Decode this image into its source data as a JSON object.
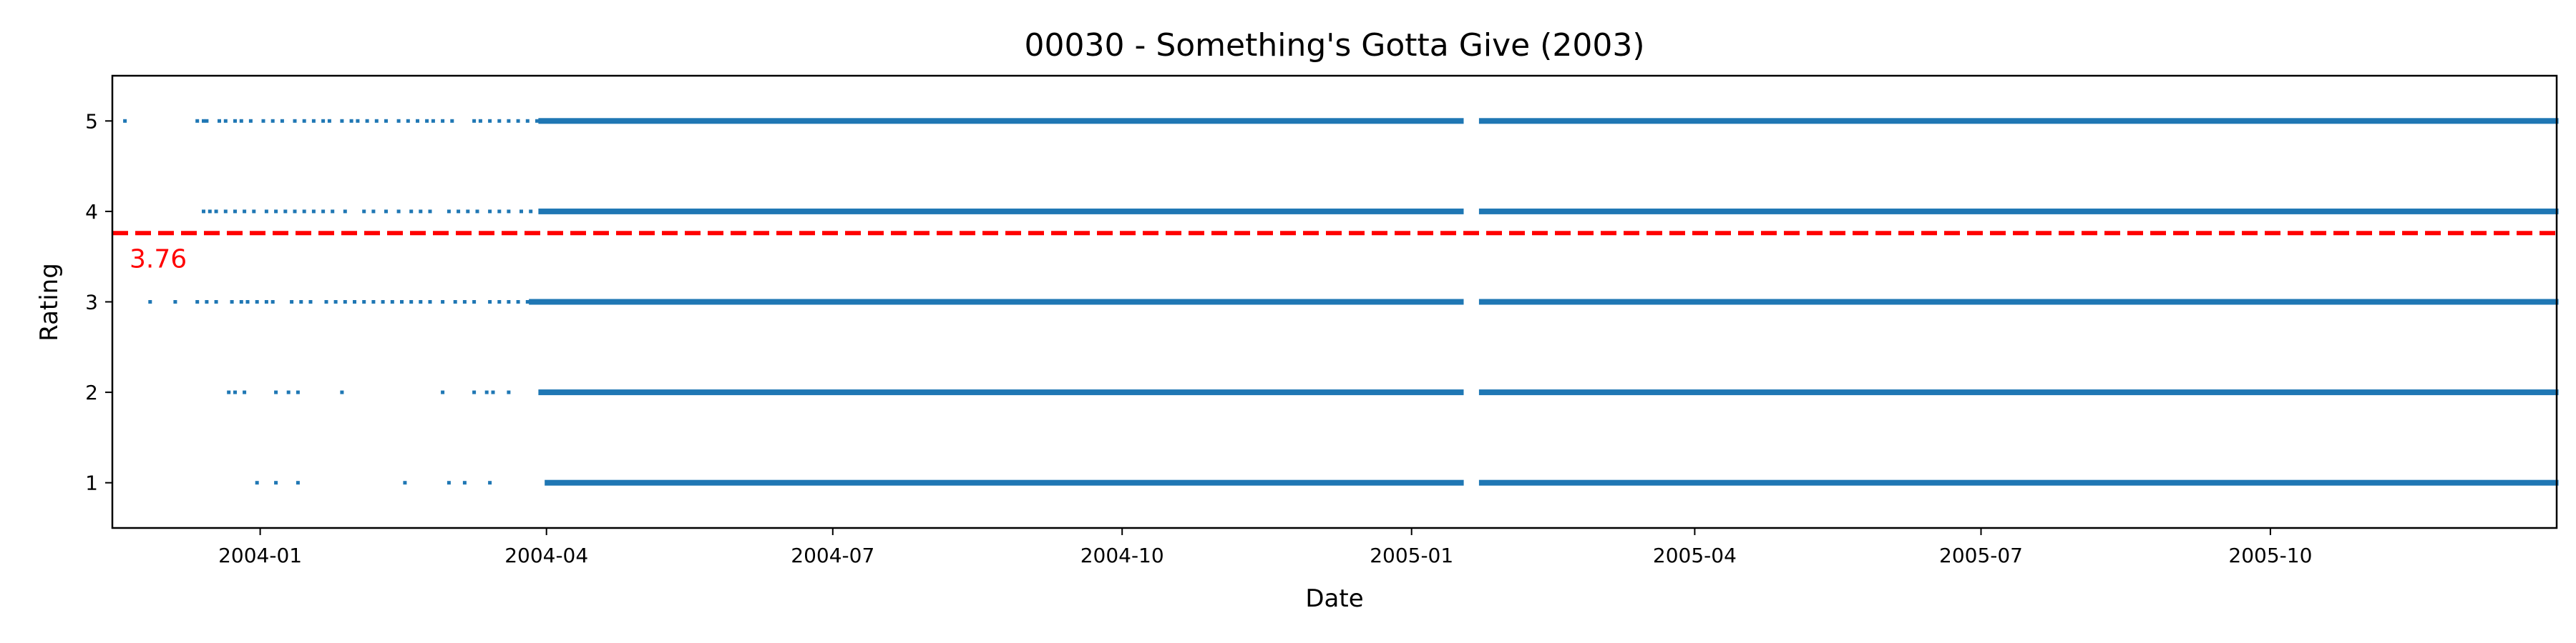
{
  "chart_data": {
    "type": "scatter",
    "title": "00030 - Something's Gotta Give (2003)",
    "xlabel": "Date",
    "ylabel": "Rating",
    "xlim": [
      "2003-11-15",
      "2005-12-31"
    ],
    "ylim": [
      0.5,
      5.5
    ],
    "x_ticks": [
      {
        "date": "2004-01-01",
        "label": "2004-01"
      },
      {
        "date": "2004-04-01",
        "label": "2004-04"
      },
      {
        "date": "2004-07-01",
        "label": "2004-07"
      },
      {
        "date": "2004-10-01",
        "label": "2004-10"
      },
      {
        "date": "2005-01-01",
        "label": "2005-01"
      },
      {
        "date": "2005-04-01",
        "label": "2005-04"
      },
      {
        "date": "2005-07-01",
        "label": "2005-07"
      },
      {
        "date": "2005-10-01",
        "label": "2005-10"
      }
    ],
    "y_ticks": [
      1,
      2,
      3,
      4,
      5
    ],
    "grid": false,
    "point_color": "#1f77b4",
    "reference_line": {
      "value": 3.76,
      "label": "3.76",
      "color": "#ff0000",
      "style": "dashed"
    },
    "series": [
      {
        "rating": 5,
        "sparse_dates": [
          "2003-11-19",
          "2003-12-12",
          "2003-12-14",
          "2003-12-15",
          "2003-12-19",
          "2003-12-21",
          "2003-12-24",
          "2003-12-26",
          "2003-12-29",
          "2004-01-02",
          "2004-01-05",
          "2004-01-08",
          "2004-01-12",
          "2004-01-15",
          "2004-01-18",
          "2004-01-21",
          "2004-01-23",
          "2004-01-27",
          "2004-01-30",
          "2004-02-01",
          "2004-02-04",
          "2004-02-07",
          "2004-02-10",
          "2004-02-14",
          "2004-02-17",
          "2004-02-20",
          "2004-02-23",
          "2004-02-25",
          "2004-02-28",
          "2004-03-02",
          "2004-03-09",
          "2004-03-11",
          "2004-03-14",
          "2004-03-17",
          "2004-03-20",
          "2004-03-23",
          "2004-03-26",
          "2004-03-29"
        ],
        "continuous": [
          [
            "2004-03-30",
            "2005-01-17"
          ],
          [
            "2005-01-23",
            "2005-12-31"
          ]
        ]
      },
      {
        "rating": 4,
        "sparse_dates": [
          "2003-12-14",
          "2003-12-16",
          "2003-12-18",
          "2003-12-21",
          "2003-12-24",
          "2003-12-27",
          "2003-12-30",
          "2004-01-03",
          "2004-01-06",
          "2004-01-09",
          "2004-01-12",
          "2004-01-15",
          "2004-01-18",
          "2004-01-21",
          "2004-01-24",
          "2004-01-28",
          "2004-02-03",
          "2004-02-06",
          "2004-02-10",
          "2004-02-14",
          "2004-02-18",
          "2004-02-21",
          "2004-02-24",
          "2004-03-01",
          "2004-03-04",
          "2004-03-07",
          "2004-03-10",
          "2004-03-14",
          "2004-03-17",
          "2004-03-20",
          "2004-03-24",
          "2004-03-27"
        ],
        "continuous": [
          [
            "2004-03-30",
            "2005-01-17"
          ],
          [
            "2005-01-23",
            "2005-12-31"
          ]
        ]
      },
      {
        "rating": 3,
        "sparse_dates": [
          "2003-11-27",
          "2003-12-05",
          "2003-12-12",
          "2003-12-15",
          "2003-12-18",
          "2003-12-23",
          "2003-12-26",
          "2003-12-28",
          "2003-12-31",
          "2004-01-03",
          "2004-01-05",
          "2004-01-11",
          "2004-01-14",
          "2004-01-17",
          "2004-01-22",
          "2004-01-25",
          "2004-01-28",
          "2004-01-31",
          "2004-02-03",
          "2004-02-06",
          "2004-02-09",
          "2004-02-12",
          "2004-02-15",
          "2004-02-18",
          "2004-02-21",
          "2004-02-24",
          "2004-02-28",
          "2004-03-03",
          "2004-03-06",
          "2004-03-09",
          "2004-03-14",
          "2004-03-17",
          "2004-03-20",
          "2004-03-23",
          "2004-03-26"
        ],
        "continuous": [
          [
            "2004-03-27",
            "2005-01-17"
          ],
          [
            "2005-01-23",
            "2005-12-31"
          ]
        ]
      },
      {
        "rating": 2,
        "sparse_dates": [
          "2003-12-22",
          "2003-12-24",
          "2003-12-27",
          "2004-01-06",
          "2004-01-10",
          "2004-01-13",
          "2004-01-27",
          "2004-02-28",
          "2004-03-09",
          "2004-03-13",
          "2004-03-15",
          "2004-03-20"
        ],
        "continuous": [
          [
            "2004-03-30",
            "2005-01-17"
          ],
          [
            "2005-01-23",
            "2005-12-31"
          ]
        ]
      },
      {
        "rating": 1,
        "sparse_dates": [
          "2003-12-31",
          "2004-01-06",
          "2004-01-13",
          "2004-02-16",
          "2004-03-01",
          "2004-03-06",
          "2004-03-14"
        ],
        "continuous": [
          [
            "2004-04-01",
            "2005-01-17"
          ],
          [
            "2005-01-23",
            "2005-12-31"
          ]
        ]
      }
    ]
  }
}
